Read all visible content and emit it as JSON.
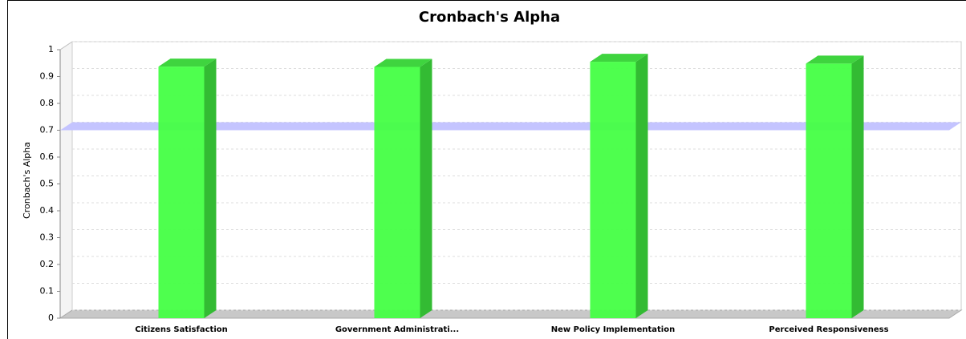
{
  "chart_data": {
    "type": "bar3d",
    "title": "Cronbach's Alpha",
    "y_label": "Cronbach's Alpha",
    "categories": [
      "Citizens Satisfaction",
      "Government Administrati...",
      "New Policy Implementation",
      "Perceived Responsiveness"
    ],
    "values": [
      0.937,
      0.936,
      0.955,
      0.948
    ],
    "color": "#44ff44",
    "range_marker": 0.7,
    "marker_color": "#c4c4ff",
    "ylim": [
      0,
      1
    ],
    "yticks": [
      0,
      0.1,
      0.2,
      0.3,
      0.4,
      0.5,
      0.6,
      0.7,
      0.8,
      0.9,
      1
    ],
    "grid": true
  }
}
